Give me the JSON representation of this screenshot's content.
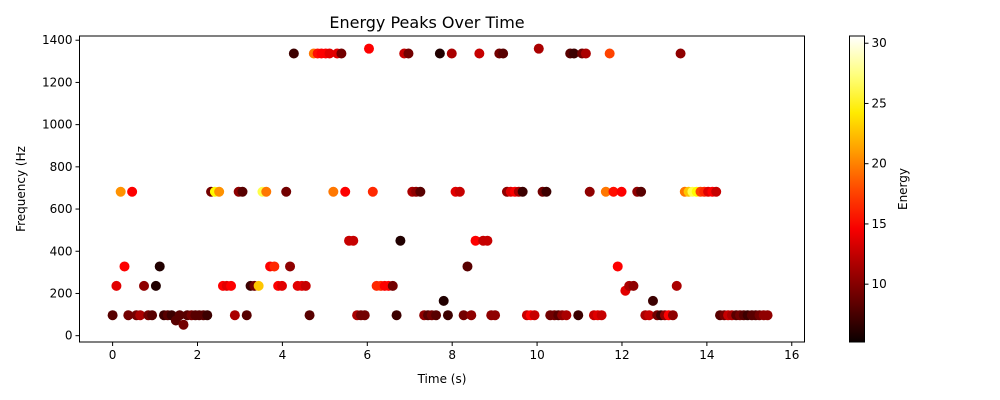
{
  "chart_data": {
    "type": "scatter",
    "title": "Energy Peaks Over Time",
    "xlabel": "Time (s)",
    "ylabel": "Frequency (Hz",
    "colorbar_label": "Energy",
    "colormap": "hot",
    "xlim": [
      -0.78,
      16.3
    ],
    "ylim": [
      -30,
      1420
    ],
    "x_ticks": [
      0,
      2,
      4,
      6,
      8,
      10,
      12,
      14,
      16
    ],
    "x_tick_labels": [
      "0",
      "2",
      "4",
      "6",
      "8",
      "10",
      "12",
      "14",
      "16"
    ],
    "y_ticks": [
      0,
      200,
      400,
      600,
      800,
      1000,
      1200,
      1400
    ],
    "y_tick_labels": [
      "0",
      "200",
      "400",
      "600",
      "800",
      "1000",
      "1200",
      "1400"
    ],
    "colorbar_range": [
      5.2,
      30.6
    ],
    "colorbar_ticks": [
      10,
      15,
      20,
      25,
      30
    ],
    "colorbar_tick_labels": [
      "10",
      "15",
      "20",
      "25",
      "30"
    ],
    "grid": false,
    "series": [
      {
        "points": [
          [
            0.0,
            97,
            8
          ],
          [
            0.09,
            236,
            13
          ],
          [
            0.19,
            682,
            20
          ],
          [
            0.28,
            328,
            14
          ],
          [
            0.37,
            97,
            9
          ],
          [
            0.46,
            682,
            14
          ],
          [
            0.56,
            97,
            9
          ],
          [
            0.65,
            97,
            11
          ],
          [
            0.74,
            236,
            10
          ],
          [
            0.84,
            97,
            9
          ],
          [
            0.93,
            97,
            8
          ],
          [
            1.02,
            236,
            6
          ],
          [
            1.11,
            328,
            6
          ],
          [
            1.21,
            97,
            7
          ],
          [
            1.3,
            97,
            8
          ],
          [
            1.39,
            97,
            7
          ],
          [
            1.49,
            72,
            8
          ],
          [
            1.58,
            97,
            8
          ],
          [
            1.67,
            52,
            9
          ],
          [
            1.76,
            97,
            8
          ],
          [
            1.86,
            97,
            9
          ],
          [
            1.95,
            97,
            8
          ],
          [
            2.04,
            97,
            8
          ],
          [
            2.14,
            97,
            8
          ],
          [
            2.23,
            97,
            7
          ],
          [
            2.32,
            682,
            9
          ],
          [
            2.41,
            682,
            24
          ],
          [
            2.51,
            682,
            20
          ],
          [
            2.6,
            236,
            14
          ],
          [
            2.69,
            236,
            13
          ],
          [
            2.79,
            236,
            14
          ],
          [
            2.88,
            97,
            11
          ],
          [
            2.97,
            682,
            10
          ],
          [
            3.06,
            682,
            8
          ],
          [
            3.16,
            97,
            8
          ],
          [
            3.25,
            236,
            7
          ],
          [
            3.34,
            236,
            9
          ],
          [
            3.44,
            236,
            22
          ],
          [
            3.53,
            682,
            26
          ],
          [
            3.62,
            682,
            19
          ],
          [
            3.71,
            328,
            14
          ],
          [
            3.81,
            328,
            16
          ],
          [
            3.9,
            236,
            14
          ],
          [
            3.99,
            236,
            13
          ],
          [
            4.09,
            682,
            9
          ],
          [
            4.18,
            328,
            10
          ],
          [
            4.27,
            1337,
            7
          ],
          [
            4.36,
            236,
            13
          ],
          [
            4.46,
            236,
            13
          ],
          [
            4.55,
            236,
            12
          ],
          [
            4.64,
            97,
            8
          ],
          [
            4.74,
            1337,
            19
          ],
          [
            4.83,
            1337,
            15
          ],
          [
            4.92,
            1337,
            14
          ],
          [
            5.02,
            1337,
            14
          ],
          [
            5.11,
            1337,
            13
          ],
          [
            5.2,
            682,
            19
          ],
          [
            5.29,
            1337,
            13
          ],
          [
            5.39,
            1337,
            9
          ],
          [
            5.48,
            682,
            14
          ],
          [
            5.57,
            450,
            12
          ],
          [
            5.67,
            450,
            12
          ],
          [
            5.76,
            97,
            11
          ],
          [
            5.85,
            97,
            9
          ],
          [
            5.94,
            97,
            9
          ],
          [
            6.04,
            1360,
            14
          ],
          [
            6.13,
            682,
            16
          ],
          [
            6.22,
            236,
            16
          ],
          [
            6.32,
            236,
            16
          ],
          [
            6.41,
            236,
            14
          ],
          [
            6.5,
            236,
            14
          ],
          [
            6.6,
            236,
            9
          ],
          [
            6.69,
            97,
            7
          ],
          [
            6.78,
            450,
            6
          ],
          [
            6.87,
            1337,
            12
          ],
          [
            6.97,
            1337,
            9
          ],
          [
            7.06,
            682,
            11
          ],
          [
            7.15,
            682,
            10
          ],
          [
            7.25,
            682,
            8
          ],
          [
            7.34,
            97,
            10
          ],
          [
            7.43,
            97,
            8
          ],
          [
            7.52,
            97,
            9
          ],
          [
            7.62,
            97,
            8
          ],
          [
            7.71,
            1337,
            6
          ],
          [
            7.8,
            165,
            6
          ],
          [
            7.9,
            97,
            7
          ],
          [
            7.99,
            1337,
            11
          ],
          [
            8.08,
            682,
            13
          ],
          [
            8.18,
            682,
            12
          ],
          [
            8.27,
            97,
            9
          ],
          [
            8.36,
            328,
            8
          ],
          [
            8.45,
            97,
            10
          ],
          [
            8.55,
            450,
            14
          ],
          [
            8.64,
            1337,
            12
          ],
          [
            8.73,
            450,
            12
          ],
          [
            8.83,
            450,
            12
          ],
          [
            8.92,
            97,
            10
          ],
          [
            9.01,
            97,
            10
          ],
          [
            9.11,
            1337,
            9
          ],
          [
            9.2,
            1337,
            8
          ],
          [
            9.29,
            682,
            10
          ],
          [
            9.38,
            682,
            13
          ],
          [
            9.48,
            682,
            14
          ],
          [
            9.57,
            682,
            11
          ],
          [
            9.66,
            682,
            7
          ],
          [
            9.76,
            97,
            12
          ],
          [
            9.85,
            97,
            14
          ],
          [
            9.94,
            97,
            12
          ],
          [
            10.04,
            1360,
            11
          ],
          [
            10.13,
            682,
            9
          ],
          [
            10.22,
            682,
            7
          ],
          [
            10.31,
            97,
            9
          ],
          [
            10.41,
            97,
            9
          ],
          [
            10.5,
            97,
            8
          ],
          [
            10.59,
            97,
            10
          ],
          [
            10.69,
            97,
            11
          ],
          [
            10.78,
            1337,
            8
          ],
          [
            10.87,
            1337,
            7
          ],
          [
            10.97,
            97,
            7
          ],
          [
            11.06,
            1337,
            9
          ],
          [
            11.15,
            1337,
            11
          ],
          [
            11.24,
            682,
            10
          ],
          [
            11.34,
            97,
            12
          ],
          [
            11.43,
            97,
            13
          ],
          [
            11.52,
            97,
            12
          ],
          [
            11.62,
            682,
            19
          ],
          [
            11.71,
            1337,
            17
          ],
          [
            11.8,
            682,
            15
          ],
          [
            11.9,
            328,
            14
          ],
          [
            11.99,
            682,
            14
          ],
          [
            12.08,
            213,
            13
          ],
          [
            12.17,
            236,
            11
          ],
          [
            12.27,
            236,
            10
          ],
          [
            12.36,
            682,
            10
          ],
          [
            12.45,
            682,
            8
          ],
          [
            12.55,
            97,
            11
          ],
          [
            12.64,
            97,
            12
          ],
          [
            12.73,
            165,
            7
          ],
          [
            12.83,
            97,
            9
          ],
          [
            12.92,
            97,
            7
          ],
          [
            13.01,
            97,
            10
          ],
          [
            13.1,
            97,
            14
          ],
          [
            13.2,
            97,
            10
          ],
          [
            13.29,
            236,
            11
          ],
          [
            13.38,
            1337,
            10
          ],
          [
            13.48,
            682,
            19
          ],
          [
            13.57,
            682,
            22
          ],
          [
            13.66,
            682,
            26
          ],
          [
            13.76,
            682,
            24
          ],
          [
            13.85,
            682,
            17
          ],
          [
            13.94,
            682,
            16
          ],
          [
            14.03,
            682,
            13
          ],
          [
            14.13,
            682,
            14
          ],
          [
            14.22,
            682,
            12
          ],
          [
            14.31,
            97,
            8
          ],
          [
            14.41,
            97,
            9
          ],
          [
            14.5,
            97,
            12
          ],
          [
            14.59,
            97,
            11
          ],
          [
            14.69,
            97,
            8
          ],
          [
            14.78,
            97,
            9
          ],
          [
            14.87,
            97,
            8
          ],
          [
            14.96,
            97,
            7
          ],
          [
            15.06,
            97,
            8
          ],
          [
            15.15,
            97,
            8
          ],
          [
            15.24,
            97,
            9
          ],
          [
            15.34,
            97,
            10
          ],
          [
            15.43,
            97,
            10
          ]
        ]
      }
    ]
  }
}
